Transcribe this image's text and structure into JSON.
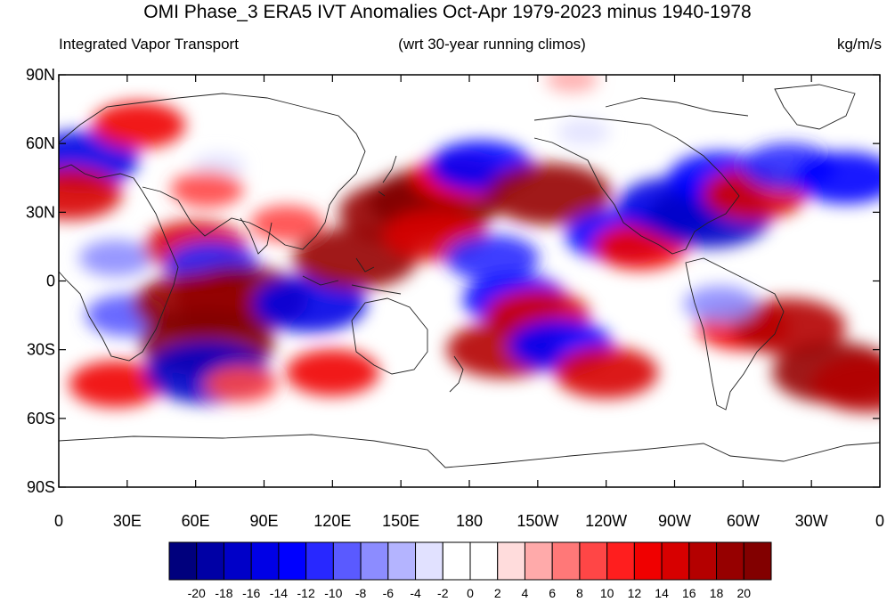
{
  "title": "OMI Phase_3 ERA5 IVT Anomalies Oct-Apr 1979-2023 minus 1940-1978",
  "subtitle_left": "Integrated Vapor Transport",
  "subtitle_center": "(wrt 30-year running climos)",
  "subtitle_right": "kg/m/s",
  "y_ticks": [
    "90N",
    "60N",
    "30N",
    "0",
    "30S",
    "60S",
    "90S"
  ],
  "x_ticks": [
    "0",
    "30E",
    "60E",
    "90E",
    "120E",
    "150E",
    "180",
    "150W",
    "120W",
    "90W",
    "60W",
    "30W",
    "0"
  ],
  "colorbar": {
    "labels": [
      "-20",
      "-18",
      "-16",
      "-14",
      "-12",
      "-10",
      "-8",
      "-6",
      "-4",
      "-2",
      "0",
      "2",
      "4",
      "6",
      "8",
      "10",
      "12",
      "14",
      "16",
      "18",
      "20"
    ],
    "colors": [
      "#00007d",
      "#0000a5",
      "#0000c8",
      "#0000e6",
      "#0000ff",
      "#2828ff",
      "#5a5aff",
      "#8c8cff",
      "#b4b4ff",
      "#e1e1ff",
      "#ffffff",
      "#ffffff",
      "#ffdcdc",
      "#ffaaaa",
      "#ff7878",
      "#ff4646",
      "#ff1e1e",
      "#f00000",
      "#d70000",
      "#b40000",
      "#960000",
      "#820000"
    ]
  },
  "map": {
    "anomaly_blobs": [
      {
        "lon": 10,
        "lat": 53,
        "value": -16
      },
      {
        "lon": 5,
        "lat": 38,
        "value": 14
      },
      {
        "lon": 35,
        "lat": 68,
        "value": 12
      },
      {
        "lon": 70,
        "lat": 50,
        "value": -4
      },
      {
        "lon": 65,
        "lat": 40,
        "value": 8
      },
      {
        "lon": 25,
        "lat": 10,
        "value": -8
      },
      {
        "lon": 30,
        "lat": -15,
        "value": -10
      },
      {
        "lon": 25,
        "lat": -45,
        "value": 12
      },
      {
        "lon": 60,
        "lat": 15,
        "value": 14
      },
      {
        "lon": 67,
        "lat": 7,
        "value": -12
      },
      {
        "lon": 80,
        "lat": -8,
        "value": 20
      },
      {
        "lon": 60,
        "lat": -10,
        "value": 18
      },
      {
        "lon": 65,
        "lat": -27,
        "value": 20
      },
      {
        "lon": 65,
        "lat": -40,
        "value": -18
      },
      {
        "lon": 80,
        "lat": -45,
        "value": 8
      },
      {
        "lon": 110,
        "lat": -10,
        "value": -16
      },
      {
        "lon": 100,
        "lat": 25,
        "value": 8
      },
      {
        "lon": 130,
        "lat": 10,
        "value": 18
      },
      {
        "lon": 120,
        "lat": -40,
        "value": 12
      },
      {
        "lon": 150,
        "lat": 30,
        "value": 18
      },
      {
        "lon": 165,
        "lat": 35,
        "value": 20
      },
      {
        "lon": 175,
        "lat": 45,
        "value": 12
      },
      {
        "lon": 165,
        "lat": 20,
        "value": 14
      },
      {
        "lon": 190,
        "lat": 10,
        "value": -12
      },
      {
        "lon": 200,
        "lat": -8,
        "value": -14
      },
      {
        "lon": 210,
        "lat": -15,
        "value": 14
      },
      {
        "lon": 195,
        "lat": -30,
        "value": 16
      },
      {
        "lon": 220,
        "lat": -28,
        "value": -14
      },
      {
        "lon": 240,
        "lat": -40,
        "value": 14
      },
      {
        "lon": 185,
        "lat": 50,
        "value": -14
      },
      {
        "lon": 215,
        "lat": 38,
        "value": 18
      },
      {
        "lon": 245,
        "lat": 20,
        "value": -14
      },
      {
        "lon": 255,
        "lat": 15,
        "value": 12
      },
      {
        "lon": 270,
        "lat": 33,
        "value": -16
      },
      {
        "lon": 285,
        "lat": 28,
        "value": -18
      },
      {
        "lon": 290,
        "lat": 45,
        "value": -14
      },
      {
        "lon": 305,
        "lat": 38,
        "value": 14
      },
      {
        "lon": 320,
        "lat": 50,
        "value": -12
      },
      {
        "lon": 345,
        "lat": 45,
        "value": -14
      },
      {
        "lon": 300,
        "lat": -20,
        "value": 12
      },
      {
        "lon": 320,
        "lat": -20,
        "value": 16
      },
      {
        "lon": 340,
        "lat": -40,
        "value": 18
      },
      {
        "lon": 355,
        "lat": -45,
        "value": 16
      },
      {
        "lon": 290,
        "lat": -10,
        "value": -8
      },
      {
        "lon": 230,
        "lat": 65,
        "value": -4
      },
      {
        "lon": 225,
        "lat": 88,
        "value": 4
      }
    ]
  }
}
